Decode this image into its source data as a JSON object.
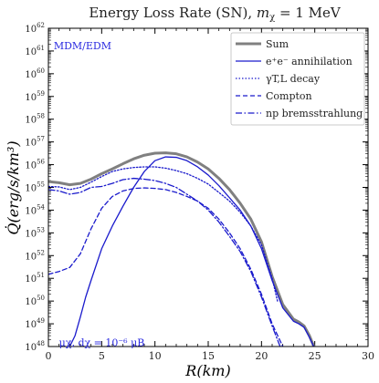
{
  "chart_data": {
    "type": "line",
    "title": "Energy Loss Rate (SN), mχ = 1 MeV",
    "title_parts": {
      "lead": "Energy Loss Rate (SN), ",
      "var": "m",
      "sub": "χ",
      "tail": " = 1 MeV"
    },
    "xlabel": "R(km)",
    "ylabel": "Q̇(erg/s/km³)",
    "x_scale": "linear",
    "y_scale": "log",
    "xlim": [
      0,
      30
    ],
    "ylim": [
      1e+48,
      1e+62
    ],
    "x_ticks": [
      0,
      5,
      10,
      15,
      20,
      25,
      30
    ],
    "y_tick_exponents": [
      48,
      49,
      50,
      51,
      52,
      53,
      54,
      55,
      56,
      57,
      58,
      59,
      60,
      61,
      62
    ],
    "y_tick_base": "10",
    "grid": false,
    "legend_position": "top-right",
    "annotations": [
      {
        "text": "MDM/EDM",
        "color": "#2a2ae0",
        "x": 0.5,
        "y": 1.2e+61
      },
      {
        "text": "μχ, dχ = 10⁻⁶ μB",
        "color": "#2a2ae0",
        "x": 1.0,
        "y": 1.05e+48
      }
    ],
    "series": [
      {
        "name": "Sum",
        "color": "#808080",
        "dash": "solid",
        "width": 3,
        "x": [
          0,
          1,
          2,
          3,
          4,
          5,
          6,
          7,
          8,
          9,
          10,
          11,
          12,
          13,
          14,
          15,
          16,
          17,
          18,
          19,
          20,
          21,
          22,
          23,
          23.5,
          24,
          24.5,
          25
        ],
        "y": [
          1.8e+55,
          1.6e+55,
          1.3e+55,
          1.5e+55,
          2.3e+55,
          4e+55,
          6.5e+55,
          1.1e+56,
          1.8e+56,
          2.6e+56,
          3.2e+56,
          3.3e+56,
          3e+56,
          2.2e+56,
          1.3e+56,
          6.5e+55,
          2.5e+55,
          8e+54,
          2e+54,
          4e+53,
          4e+52,
          1.2e+51,
          7e+49,
          1.6e+49,
          1.2e+49,
          8e+48,
          3e+48,
          8e+47
        ]
      },
      {
        "name": "e⁺e⁻ annihilation",
        "color": "#1a1acc",
        "dash": "solid",
        "width": 1.3,
        "x": [
          2,
          2.5,
          3,
          3.5,
          4,
          5,
          6,
          7,
          8,
          9,
          10,
          11,
          12,
          13,
          14,
          15,
          16,
          17,
          18,
          19,
          20,
          21,
          22,
          23,
          23.5,
          24,
          24.5,
          25
        ],
        "y": [
          1e+48,
          3e+48,
          2e+49,
          1.5e+50,
          8e+50,
          2e+52,
          2e+53,
          1.5e+54,
          1e+55,
          5e+55,
          1.5e+56,
          2.2e+56,
          2.1e+56,
          1.5e+56,
          8e+55,
          3.5e+55,
          1.2e+55,
          3.5e+54,
          1e+54,
          2e+53,
          2e+52,
          8e+50,
          5e+49,
          1.3e+49,
          1e+49,
          7e+48,
          2.5e+48,
          8e+47
        ]
      },
      {
        "name": "γT,L decay",
        "color": "#1a1acc",
        "dash": "dotted",
        "width": 1.3,
        "x": [
          0,
          1,
          2,
          3,
          4,
          5,
          6,
          7,
          8,
          9,
          10,
          11,
          12,
          13,
          14,
          15,
          16,
          17,
          18,
          19,
          20,
          21,
          21.5
        ],
        "y": [
          1.1e+55,
          1.05e+55,
          8e+54,
          1e+55,
          1.7e+55,
          3e+55,
          5e+55,
          6.5e+55,
          7.5e+55,
          8e+55,
          8e+55,
          7e+55,
          5.5e+55,
          4e+55,
          2.5e+55,
          1.4e+55,
          6e+54,
          2.5e+54,
          8e+53,
          2e+53,
          3e+52,
          1e+51,
          1e+50
        ]
      },
      {
        "name": "Compton",
        "color": "#1a1acc",
        "dash": "dashed",
        "width": 1.3,
        "x": [
          0,
          1,
          2,
          3,
          4,
          5,
          6,
          7,
          8,
          9,
          10,
          11,
          12,
          13,
          14,
          15,
          16,
          17,
          18,
          19,
          20,
          21,
          22,
          22.5
        ],
        "y": [
          1.5e+51,
          2e+51,
          3e+51,
          1.2e+52,
          1.5e+53,
          1.2e+54,
          4e+54,
          7e+54,
          9e+54,
          9.5e+54,
          9e+54,
          8e+54,
          6e+54,
          4e+54,
          2.5e+54,
          1.2e+54,
          4e+53,
          1e+53,
          2e+52,
          2.5e+51,
          2e+50,
          1e+49,
          1e+48,
          3e+47
        ]
      },
      {
        "name": "np bremsstrahlung",
        "color": "#1a1acc",
        "dash": "dashdot",
        "width": 1.3,
        "x": [
          0,
          1,
          2,
          3,
          4,
          5,
          6,
          7,
          8,
          9,
          10,
          11,
          12,
          13,
          14,
          15,
          16,
          17,
          18,
          19,
          20,
          21,
          22,
          22.5
        ],
        "y": [
          8e+54,
          7e+54,
          5e+54,
          6e+54,
          1e+55,
          1.1e+55,
          1.5e+55,
          2.2e+55,
          2.5e+55,
          2.3e+55,
          2e+55,
          1.5e+55,
          1e+55,
          5e+54,
          2.5e+54,
          1e+54,
          3e+53,
          7e+52,
          1.5e+52,
          2e+51,
          1.5e+50,
          8e+48,
          5e+47,
          2e+47
        ]
      }
    ]
  }
}
